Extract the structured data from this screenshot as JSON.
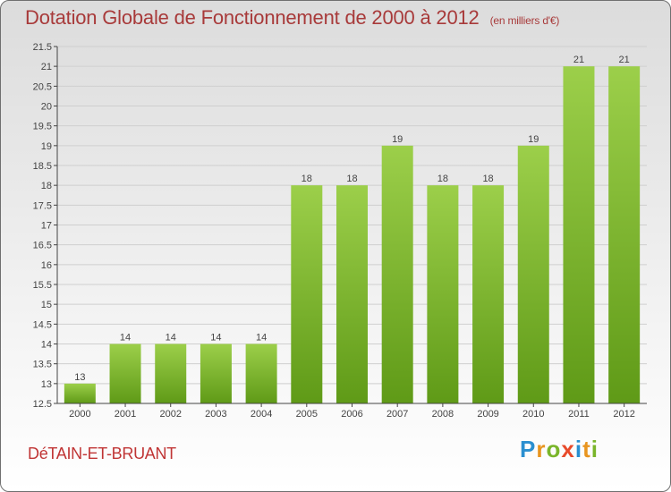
{
  "title": "Dotation Globale de Fonctionnement de 2000 à 2012",
  "unit": "(en milliers d'€)",
  "commune": "DéTAIN-ET-BRUANT",
  "logo": {
    "text": "Proxiti",
    "letters": [
      {
        "ch": "P",
        "color": "#2a8fd0"
      },
      {
        "ch": "r",
        "color": "#e8951f"
      },
      {
        "ch": "o",
        "color": "#7ab52a"
      },
      {
        "ch": "x",
        "color": "#e84a2a"
      },
      {
        "ch": "i",
        "color": "#2a8fd0"
      },
      {
        "ch": "t",
        "color": "#e8951f"
      },
      {
        "ch": "i",
        "color": "#7ab52a"
      }
    ]
  },
  "colors": {
    "bar_top": "#9ccf4a",
    "bar_bottom": "#5f9a17",
    "grid": "#cfcfcf",
    "axis": "#444444"
  },
  "chart_data": {
    "type": "bar",
    "categories": [
      "2000",
      "2001",
      "2002",
      "2003",
      "2004",
      "2005",
      "2006",
      "2007",
      "2008",
      "2009",
      "2010",
      "2011",
      "2012"
    ],
    "values": [
      13,
      14,
      14,
      14,
      14,
      18,
      18,
      19,
      18,
      18,
      19,
      21,
      21
    ],
    "data_labels": [
      "13",
      "14",
      "14",
      "14",
      "14",
      "18",
      "18",
      "19",
      "18",
      "18",
      "19",
      "21",
      "21"
    ],
    "title": "Dotation Globale de Fonctionnement de 2000 à 2012",
    "xlabel": "",
    "ylabel": "",
    "ylim": [
      12.5,
      21.5
    ],
    "yticks": [
      "12.5",
      "13",
      "13.5",
      "14",
      "14.5",
      "15",
      "15.5",
      "16",
      "16.5",
      "17",
      "17.5",
      "18",
      "18.5",
      "19",
      "19.5",
      "20",
      "20.5",
      "21",
      "21.5"
    ],
    "grid": true
  }
}
